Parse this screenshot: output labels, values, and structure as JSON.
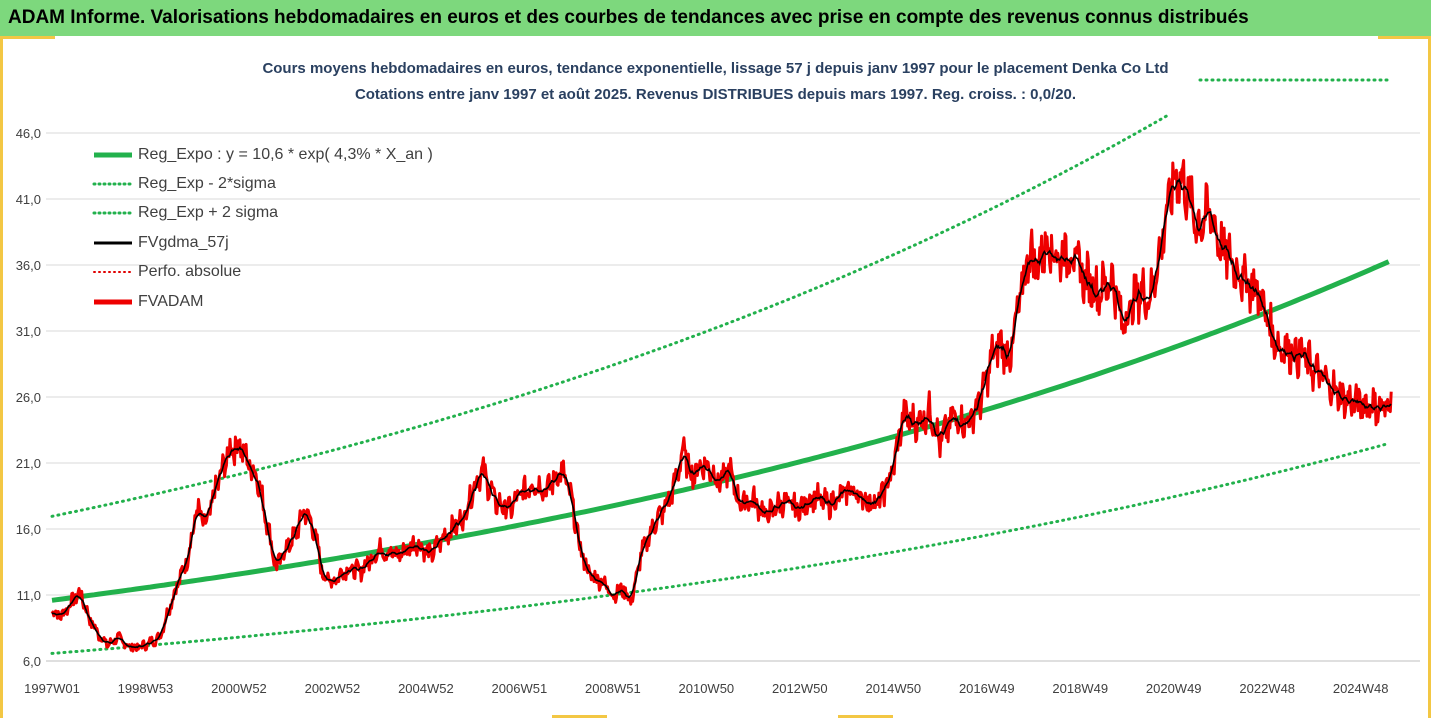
{
  "banner": {
    "title": "ADAM Informe. Valorisations hebdomadaires en euros et des courbes de tendances avec prise en compte des revenus connus distribués"
  },
  "chart_data": {
    "type": "line",
    "title": "Cours moyens hebdomadaires en euros, tendance exponentielle, lissage 57 j depuis janv 1997 pour le placement Denka Co Ltd",
    "subtitle": "Cotations entre janv 1997 et août 2025.  Revenus DISTRIBUES depuis mars 1997. Reg. croiss. : 0,0/20.",
    "ylim": [
      6.0,
      46.0
    ],
    "y_ticks": [
      "6,0",
      "11,0",
      "16,0",
      "21,0",
      "26,0",
      "31,0",
      "36,0",
      "41,0",
      "46,0"
    ],
    "x_range_years": [
      1997.0,
      2025.67
    ],
    "x_ticks": [
      {
        "label": "1997W01",
        "year": 1997.0
      },
      {
        "label": "1998W53",
        "year": 1999.0
      },
      {
        "label": "2000W52",
        "year": 2001.0
      },
      {
        "label": "2002W52",
        "year": 2003.0
      },
      {
        "label": "2004W52",
        "year": 2005.0
      },
      {
        "label": "2006W51",
        "year": 2007.0
      },
      {
        "label": "2008W51",
        "year": 2009.0
      },
      {
        "label": "2010W50",
        "year": 2011.0
      },
      {
        "label": "2012W50",
        "year": 2013.0
      },
      {
        "label": "2014W50",
        "year": 2015.0
      },
      {
        "label": "2016W49",
        "year": 2017.0
      },
      {
        "label": "2018W49",
        "year": 2019.0
      },
      {
        "label": "2020W49",
        "year": 2021.0
      },
      {
        "label": "2022W48",
        "year": 2023.0
      },
      {
        "label": "2024W48",
        "year": 2025.0
      }
    ],
    "grid": "horizontal",
    "legend_position": "top-left",
    "regression": {
      "a": 10.6,
      "rate": 0.043,
      "sigma_factor_low": 0.62,
      "sigma_factor_high": 1.6
    },
    "series": [
      {
        "name": "Reg_Expo : y = 10,6 * exp( 4,3% *  X_an )",
        "color": "#22b14c",
        "style": "solid-thick"
      },
      {
        "name": "Reg_Exp - 2*sigma",
        "color": "#22b14c",
        "style": "dotted"
      },
      {
        "name": "Reg_Exp + 2 sigma",
        "color": "#22b14c",
        "style": "dotted"
      },
      {
        "name": "FVgdma_57j",
        "color": "#000000",
        "style": "solid"
      },
      {
        "name": "Perfo. absolue",
        "color": "#e00000",
        "style": "dotted"
      },
      {
        "name": "FVADAM",
        "color": "#ee0000",
        "style": "solid-thick"
      }
    ],
    "fvadam_points": [
      [
        1997.0,
        9.8
      ],
      [
        1997.2,
        9.4
      ],
      [
        1997.4,
        10.4
      ],
      [
        1997.6,
        11.2
      ],
      [
        1997.8,
        9.2
      ],
      [
        1998.0,
        8.0
      ],
      [
        1998.2,
        7.2
      ],
      [
        1998.4,
        7.8
      ],
      [
        1998.6,
        7.2
      ],
      [
        1998.8,
        7.0
      ],
      [
        1999.0,
        7.2
      ],
      [
        1999.3,
        7.8
      ],
      [
        1999.6,
        11.0
      ],
      [
        1999.9,
        13.8
      ],
      [
        2000.1,
        17.5
      ],
      [
        2000.3,
        16.2
      ],
      [
        2000.5,
        19.0
      ],
      [
        2000.8,
        22.0
      ],
      [
        2001.0,
        22.5
      ],
      [
        2001.2,
        21.0
      ],
      [
        2001.4,
        20.0
      ],
      [
        2001.6,
        16.5
      ],
      [
        2001.8,
        13.0
      ],
      [
        2002.0,
        14.5
      ],
      [
        2002.2,
        15.5
      ],
      [
        2002.4,
        17.5
      ],
      [
        2002.6,
        16.0
      ],
      [
        2002.8,
        12.5
      ],
      [
        2003.0,
        12.0
      ],
      [
        2003.3,
        13.0
      ],
      [
        2003.6,
        12.8
      ],
      [
        2004.0,
        14.5
      ],
      [
        2004.4,
        14.0
      ],
      [
        2004.8,
        15.0
      ],
      [
        2005.1,
        14.0
      ],
      [
        2005.4,
        15.5
      ],
      [
        2005.8,
        16.8
      ],
      [
        2006.0,
        19.0
      ],
      [
        2006.2,
        20.5
      ],
      [
        2006.5,
        18.0
      ],
      [
        2006.8,
        17.5
      ],
      [
        2007.0,
        18.5
      ],
      [
        2007.3,
        19.5
      ],
      [
        2007.6,
        19.0
      ],
      [
        2007.9,
        20.5
      ],
      [
        2008.1,
        18.5
      ],
      [
        2008.3,
        14.5
      ],
      [
        2008.5,
        12.5
      ],
      [
        2008.8,
        12.0
      ],
      [
        2009.0,
        11.0
      ],
      [
        2009.2,
        11.5
      ],
      [
        2009.4,
        10.5
      ],
      [
        2009.6,
        14.0
      ],
      [
        2009.9,
        16.5
      ],
      [
        2010.1,
        17.5
      ],
      [
        2010.3,
        19.0
      ],
      [
        2010.5,
        22.0
      ],
      [
        2010.7,
        20.0
      ],
      [
        2010.9,
        21.0
      ],
      [
        2011.1,
        20.5
      ],
      [
        2011.3,
        19.5
      ],
      [
        2011.5,
        20.5
      ],
      [
        2011.7,
        18.0
      ],
      [
        2012.0,
        18.2
      ],
      [
        2012.3,
        17.0
      ],
      [
        2012.6,
        18.0
      ],
      [
        2013.0,
        17.5
      ],
      [
        2013.3,
        18.5
      ],
      [
        2013.6,
        17.8
      ],
      [
        2013.9,
        18.5
      ],
      [
        2014.1,
        19.0
      ],
      [
        2014.4,
        18.2
      ],
      [
        2014.7,
        18.0
      ],
      [
        2015.0,
        20.5
      ],
      [
        2015.2,
        24.5
      ],
      [
        2015.5,
        24.0
      ],
      [
        2015.8,
        25.0
      ],
      [
        2016.0,
        22.5
      ],
      [
        2016.3,
        24.5
      ],
      [
        2016.6,
        24.0
      ],
      [
        2016.9,
        26.0
      ],
      [
        2017.1,
        29.0
      ],
      [
        2017.3,
        30.0
      ],
      [
        2017.5,
        29.0
      ],
      [
        2017.7,
        33.0
      ],
      [
        2017.9,
        37.0
      ],
      [
        2018.1,
        36.0
      ],
      [
        2018.3,
        38.0
      ],
      [
        2018.5,
        36.5
      ],
      [
        2018.8,
        37.0
      ],
      [
        2019.1,
        35.0
      ],
      [
        2019.4,
        34.0
      ],
      [
        2019.7,
        35.0
      ],
      [
        2019.9,
        31.5
      ],
      [
        2020.1,
        33.0
      ],
      [
        2020.3,
        34.0
      ],
      [
        2020.5,
        33.5
      ],
      [
        2020.7,
        37.0
      ],
      [
        2020.9,
        41.0
      ],
      [
        2021.1,
        43.0
      ],
      [
        2021.3,
        41.5
      ],
      [
        2021.5,
        39.0
      ],
      [
        2021.8,
        40.0
      ],
      [
        2022.0,
        37.5
      ],
      [
        2022.3,
        36.0
      ],
      [
        2022.5,
        35.0
      ],
      [
        2022.8,
        34.0
      ],
      [
        2023.0,
        32.0
      ],
      [
        2023.2,
        30.0
      ],
      [
        2023.5,
        29.5
      ],
      [
        2023.8,
        29.0
      ],
      [
        2024.0,
        28.0
      ],
      [
        2024.3,
        27.0
      ],
      [
        2024.6,
        26.0
      ],
      [
        2024.9,
        25.5
      ],
      [
        2025.2,
        25.5
      ],
      [
        2025.5,
        25.0
      ],
      [
        2025.67,
        25.8
      ]
    ]
  }
}
